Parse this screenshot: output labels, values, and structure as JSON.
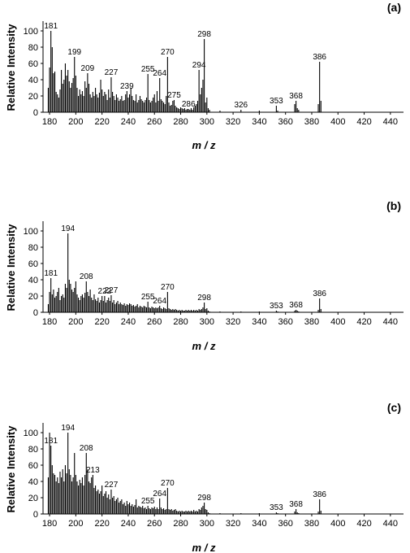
{
  "chart_data": [
    {
      "type": "bar",
      "title": "(a)",
      "xlabel": "m / z",
      "ylabel": "Relative Intensity",
      "xlim": [
        175,
        450
      ],
      "ylim": [
        0,
        110
      ],
      "xticks": [
        180,
        200,
        220,
        240,
        260,
        280,
        300,
        320,
        340,
        360,
        380,
        400,
        420,
        440
      ],
      "yticks": [
        0,
        20,
        40,
        60,
        80,
        100
      ],
      "grid": false,
      "peak_labels": [
        {
          "x": 181,
          "y": 100,
          "label": "181"
        },
        {
          "x": 199,
          "y": 68,
          "label": "199"
        },
        {
          "x": 209,
          "y": 48,
          "label": "209"
        },
        {
          "x": 227,
          "y": 43,
          "label": "227"
        },
        {
          "x": 239,
          "y": 26,
          "label": "239"
        },
        {
          "x": 255,
          "y": 47,
          "label": "255"
        },
        {
          "x": 264,
          "y": 42,
          "label": "264"
        },
        {
          "x": 270,
          "y": 68,
          "label": "270"
        },
        {
          "x": 275,
          "y": 15,
          "label": "275"
        },
        {
          "x": 286,
          "y": 4,
          "label": "286"
        },
        {
          "x": 294,
          "y": 52,
          "label": "294"
        },
        {
          "x": 298,
          "y": 90,
          "label": "298"
        },
        {
          "x": 326,
          "y": 3,
          "label": "326"
        },
        {
          "x": 353,
          "y": 8,
          "label": "353"
        },
        {
          "x": 368,
          "y": 14,
          "label": "368"
        },
        {
          "x": 386,
          "y": 62,
          "label": "386"
        }
      ],
      "x": [
        179,
        180,
        181,
        182,
        183,
        184,
        185,
        186,
        187,
        188,
        189,
        190,
        191,
        192,
        193,
        194,
        195,
        196,
        197,
        198,
        199,
        200,
        201,
        202,
        203,
        204,
        205,
        206,
        207,
        208,
        209,
        210,
        211,
        212,
        213,
        214,
        215,
        216,
        217,
        218,
        219,
        220,
        221,
        222,
        223,
        224,
        225,
        226,
        227,
        228,
        229,
        230,
        231,
        232,
        233,
        234,
        235,
        236,
        237,
        238,
        239,
        240,
        241,
        242,
        243,
        244,
        245,
        246,
        247,
        248,
        249,
        250,
        251,
        252,
        253,
        254,
        255,
        256,
        257,
        258,
        259,
        260,
        261,
        262,
        263,
        264,
        265,
        266,
        267,
        268,
        269,
        270,
        271,
        272,
        273,
        274,
        275,
        276,
        277,
        278,
        279,
        280,
        281,
        282,
        283,
        284,
        285,
        286,
        287,
        288,
        289,
        290,
        291,
        292,
        293,
        294,
        295,
        296,
        297,
        298,
        299,
        300,
        301,
        302,
        310,
        326,
        340,
        353,
        354,
        367,
        368,
        369,
        370,
        385,
        386,
        387
      ],
      "values": [
        30,
        55,
        100,
        80,
        48,
        50,
        25,
        22,
        18,
        28,
        52,
        35,
        40,
        60,
        45,
        52,
        38,
        30,
        36,
        42,
        68,
        45,
        30,
        20,
        28,
        22,
        26,
        20,
        38,
        30,
        48,
        35,
        22,
        18,
        25,
        20,
        30,
        22,
        18,
        24,
        40,
        28,
        20,
        25,
        22,
        15,
        28,
        18,
        43,
        25,
        20,
        15,
        22,
        18,
        14,
        16,
        20,
        14,
        15,
        22,
        26,
        18,
        22,
        30,
        20,
        15,
        14,
        22,
        12,
        15,
        20,
        16,
        14,
        12,
        15,
        18,
        47,
        15,
        12,
        14,
        18,
        22,
        12,
        26,
        14,
        42,
        16,
        14,
        12,
        10,
        20,
        68,
        12,
        8,
        9,
        14,
        15,
        8,
        6,
        5,
        4,
        6,
        5,
        4,
        5,
        3,
        4,
        4,
        3,
        5,
        3,
        6,
        8,
        10,
        14,
        52,
        22,
        30,
        40,
        90,
        12,
        18,
        5,
        3,
        2,
        3,
        2,
        8,
        2,
        10,
        14,
        5,
        3,
        10,
        62,
        14
      ]
    },
    {
      "type": "bar",
      "title": "(b)",
      "xlabel": "m / z",
      "ylabel": "Relative Intensity",
      "xlim": [
        175,
        450
      ],
      "ylim": [
        0,
        110
      ],
      "xticks": [
        180,
        200,
        220,
        240,
        260,
        280,
        300,
        320,
        340,
        360,
        380,
        400,
        420,
        440
      ],
      "yticks": [
        0,
        20,
        40,
        60,
        80,
        100
      ],
      "grid": false,
      "peak_labels": [
        {
          "x": 181,
          "y": 42,
          "label": "181"
        },
        {
          "x": 194,
          "y": 97,
          "label": "194"
        },
        {
          "x": 208,
          "y": 38,
          "label": "208"
        },
        {
          "x": 222,
          "y": 20,
          "label": "222"
        },
        {
          "x": 227,
          "y": 21,
          "label": "227"
        },
        {
          "x": 255,
          "y": 13,
          "label": "255"
        },
        {
          "x": 264,
          "y": 8,
          "label": "264"
        },
        {
          "x": 270,
          "y": 25,
          "label": "270"
        },
        {
          "x": 298,
          "y": 12,
          "label": "298"
        },
        {
          "x": 353,
          "y": 2,
          "label": "353"
        },
        {
          "x": 368,
          "y": 3,
          "label": "368"
        },
        {
          "x": 386,
          "y": 17,
          "label": "386"
        }
      ],
      "x": [
        179,
        180,
        181,
        182,
        183,
        184,
        185,
        186,
        187,
        188,
        189,
        190,
        191,
        192,
        193,
        194,
        195,
        196,
        197,
        198,
        199,
        200,
        201,
        202,
        203,
        204,
        205,
        206,
        207,
        208,
        209,
        210,
        211,
        212,
        213,
        214,
        215,
        216,
        217,
        218,
        219,
        220,
        221,
        222,
        223,
        224,
        225,
        226,
        227,
        228,
        229,
        230,
        231,
        232,
        233,
        234,
        235,
        236,
        237,
        238,
        239,
        240,
        241,
        242,
        243,
        244,
        245,
        246,
        247,
        248,
        249,
        250,
        251,
        252,
        253,
        254,
        255,
        256,
        257,
        258,
        259,
        260,
        261,
        262,
        263,
        264,
        265,
        266,
        267,
        268,
        269,
        270,
        271,
        272,
        273,
        274,
        275,
        276,
        277,
        278,
        279,
        280,
        281,
        282,
        283,
        284,
        285,
        286,
        287,
        288,
        289,
        290,
        291,
        292,
        293,
        294,
        295,
        296,
        297,
        298,
        299,
        300,
        301,
        302,
        310,
        326,
        340,
        353,
        354,
        367,
        368,
        369,
        370,
        385,
        386,
        387
      ],
      "values": [
        10,
        25,
        42,
        22,
        28,
        18,
        20,
        25,
        30,
        15,
        20,
        22,
        18,
        35,
        30,
        97,
        40,
        35,
        28,
        25,
        30,
        38,
        22,
        18,
        15,
        20,
        22,
        18,
        24,
        38,
        25,
        20,
        28,
        18,
        15,
        22,
        16,
        14,
        18,
        12,
        15,
        20,
        14,
        20,
        12,
        15,
        18,
        14,
        21,
        12,
        15,
        10,
        12,
        14,
        10,
        12,
        10,
        9,
        11,
        8,
        10,
        9,
        11,
        10,
        8,
        9,
        7,
        8,
        10,
        6,
        8,
        7,
        6,
        8,
        7,
        6,
        13,
        6,
        5,
        7,
        6,
        5,
        6,
        5,
        6,
        8,
        5,
        4,
        6,
        5,
        4,
        25,
        5,
        4,
        3,
        4,
        3,
        4,
        3,
        2,
        3,
        2,
        3,
        2,
        2,
        3,
        2,
        3,
        2,
        3,
        2,
        3,
        2,
        3,
        2,
        4,
        3,
        4,
        6,
        12,
        4,
        5,
        2,
        1,
        1,
        1,
        1,
        2,
        1,
        2,
        3,
        2,
        1,
        3,
        17,
        4
      ]
    },
    {
      "type": "bar",
      "title": "(c)",
      "xlabel": "m / z",
      "ylabel": "Relative Intensity",
      "xlim": [
        175,
        450
      ],
      "ylim": [
        0,
        110
      ],
      "xticks": [
        180,
        200,
        220,
        240,
        260,
        280,
        300,
        320,
        340,
        360,
        380,
        400,
        420,
        440
      ],
      "yticks": [
        0,
        20,
        40,
        60,
        80,
        100
      ],
      "grid": false,
      "peak_labels": [
        {
          "x": 181,
          "y": 84,
          "label": "181"
        },
        {
          "x": 194,
          "y": 100,
          "label": "194"
        },
        {
          "x": 208,
          "y": 75,
          "label": "208"
        },
        {
          "x": 213,
          "y": 48,
          "label": "213"
        },
        {
          "x": 227,
          "y": 30,
          "label": "227"
        },
        {
          "x": 255,
          "y": 10,
          "label": "255"
        },
        {
          "x": 264,
          "y": 19,
          "label": "264"
        },
        {
          "x": 270,
          "y": 32,
          "label": "270"
        },
        {
          "x": 298,
          "y": 14,
          "label": "298"
        },
        {
          "x": 353,
          "y": 2,
          "label": "353"
        },
        {
          "x": 368,
          "y": 6,
          "label": "368"
        },
        {
          "x": 386,
          "y": 18,
          "label": "386"
        }
      ],
      "x": [
        179,
        180,
        181,
        182,
        183,
        184,
        185,
        186,
        187,
        188,
        189,
        190,
        191,
        192,
        193,
        194,
        195,
        196,
        197,
        198,
        199,
        200,
        201,
        202,
        203,
        204,
        205,
        206,
        207,
        208,
        209,
        210,
        211,
        212,
        213,
        214,
        215,
        216,
        217,
        218,
        219,
        220,
        221,
        222,
        223,
        224,
        225,
        226,
        227,
        228,
        229,
        230,
        231,
        232,
        233,
        234,
        235,
        236,
        237,
        238,
        239,
        240,
        241,
        242,
        243,
        244,
        245,
        246,
        247,
        248,
        249,
        250,
        251,
        252,
        253,
        254,
        255,
        256,
        257,
        258,
        259,
        260,
        261,
        262,
        263,
        264,
        265,
        266,
        267,
        268,
        269,
        270,
        271,
        272,
        273,
        274,
        275,
        276,
        277,
        278,
        279,
        280,
        281,
        282,
        283,
        284,
        285,
        286,
        287,
        288,
        289,
        290,
        291,
        292,
        293,
        294,
        295,
        296,
        297,
        298,
        299,
        300,
        301,
        302,
        310,
        326,
        340,
        353,
        354,
        367,
        368,
        369,
        370,
        385,
        386,
        387
      ],
      "values": [
        45,
        100,
        84,
        60,
        50,
        48,
        40,
        45,
        38,
        52,
        45,
        55,
        40,
        60,
        50,
        100,
        55,
        48,
        40,
        45,
        75,
        48,
        40,
        35,
        42,
        38,
        45,
        35,
        48,
        75,
        55,
        40,
        38,
        45,
        48,
        32,
        35,
        28,
        30,
        25,
        28,
        35,
        22,
        25,
        28,
        20,
        24,
        18,
        30,
        20,
        22,
        16,
        18,
        20,
        14,
        16,
        18,
        12,
        14,
        10,
        16,
        12,
        14,
        10,
        12,
        9,
        11,
        18,
        8,
        10,
        9,
        8,
        10,
        7,
        8,
        6,
        10,
        7,
        6,
        8,
        7,
        9,
        6,
        8,
        6,
        19,
        8,
        6,
        7,
        5,
        6,
        32,
        6,
        5,
        6,
        4,
        5,
        6,
        4,
        3,
        4,
        3,
        4,
        3,
        3,
        4,
        3,
        4,
        3,
        4,
        3,
        5,
        3,
        4,
        3,
        6,
        5,
        8,
        10,
        14,
        6,
        5,
        2,
        1,
        1,
        1,
        1,
        2,
        1,
        3,
        6,
        2,
        1,
        3,
        18,
        4
      ]
    }
  ]
}
